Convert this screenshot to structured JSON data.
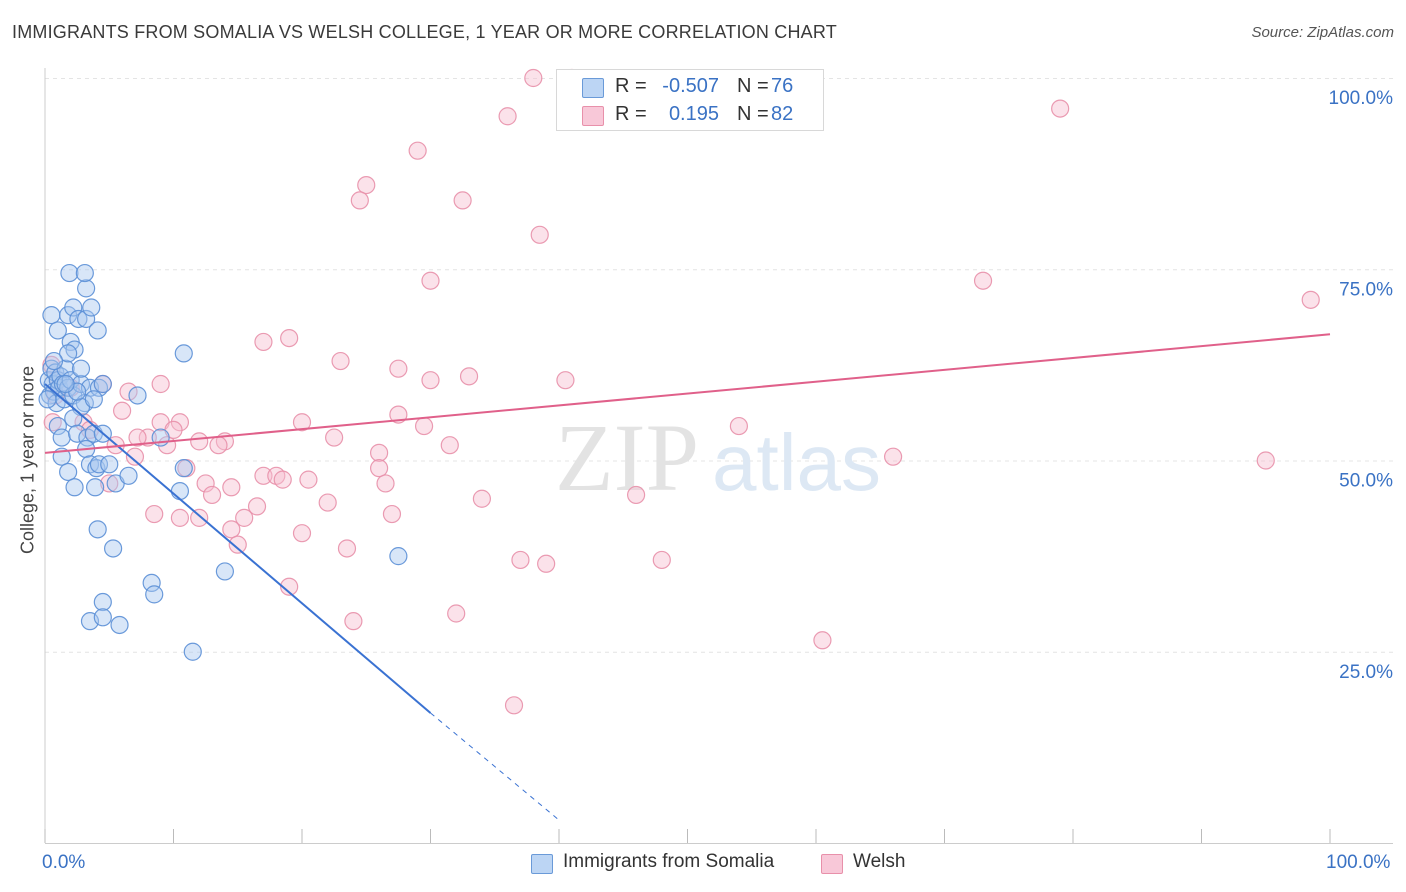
{
  "header": {
    "title": "IMMIGRANTS FROM SOMALIA VS WELSH COLLEGE, 1 YEAR OR MORE CORRELATION CHART",
    "source": "Source: ZipAtlas.com"
  },
  "watermark": {
    "zip": "ZIP",
    "atlas": "atlas"
  },
  "stats": {
    "r_label": "R =",
    "n_label": "N =",
    "somalia": {
      "r": "-0.507",
      "n": "76"
    },
    "welsh": {
      "r": "0.195",
      "n": "82"
    }
  },
  "legend": {
    "somalia": "Immigrants from Somalia",
    "welsh": "Welsh"
  },
  "colors": {
    "somalia_fill": "#a8c8f0",
    "somalia_stroke": "#5b8fd6",
    "somalia_line": "#3a72d2",
    "welsh_fill": "#f6bfd0",
    "welsh_stroke": "#e890aa",
    "welsh_line": "#e0608a",
    "axis_label_blue": "#3a72c4",
    "grid": "#e4e4e4"
  },
  "chart_data": {
    "type": "scatter",
    "title": "IMMIGRANTS FROM SOMALIA VS WELSH COLLEGE, 1 YEAR OR MORE CORRELATION CHART",
    "xlabel": "",
    "ylabel": "College, 1 year or more",
    "xlim": [
      0,
      100
    ],
    "ylim": [
      0,
      100
    ],
    "x_tick_labels": [
      "0.0%",
      "100.0%"
    ],
    "y_tick_labels": [
      "100.0%",
      "75.0%",
      "50.0%",
      "25.0%"
    ],
    "y_ticks": [
      100,
      75,
      50,
      25
    ],
    "legend_position": "bottom",
    "series": [
      {
        "name": "Immigrants from Somalia",
        "r": -0.507,
        "n": 76,
        "trend": {
          "x0": 0,
          "y0": 60.0,
          "x1": 30,
          "y1": 17.0,
          "dash_to_x": 40,
          "dash_to_y": 3.0
        },
        "points": [
          [
            0.3,
            60.5
          ],
          [
            0.4,
            58.5
          ],
          [
            0.5,
            62.0
          ],
          [
            0.6,
            60.0
          ],
          [
            0.7,
            59.0
          ],
          [
            0.8,
            61.5
          ],
          [
            0.9,
            57.5
          ],
          [
            1.0,
            60.5
          ],
          [
            1.1,
            59.5
          ],
          [
            1.2,
            61.0
          ],
          [
            1.4,
            60.0
          ],
          [
            1.5,
            58.0
          ],
          [
            1.6,
            62.0
          ],
          [
            1.8,
            59.5
          ],
          [
            2.0,
            60.5
          ],
          [
            2.2,
            58.5
          ],
          [
            0.5,
            69.0
          ],
          [
            1.0,
            67.0
          ],
          [
            1.8,
            69.0
          ],
          [
            2.2,
            70.0
          ],
          [
            2.6,
            68.5
          ],
          [
            3.2,
            68.5
          ],
          [
            3.6,
            70.0
          ],
          [
            3.2,
            72.5
          ],
          [
            1.9,
            74.5
          ],
          [
            3.1,
            74.5
          ],
          [
            2.0,
            65.5
          ],
          [
            2.3,
            64.5
          ],
          [
            1.8,
            64.0
          ],
          [
            4.1,
            67.0
          ],
          [
            2.8,
            60.0
          ],
          [
            3.5,
            59.5
          ],
          [
            4.2,
            59.5
          ],
          [
            3.1,
            57.5
          ],
          [
            2.8,
            57.0
          ],
          [
            2.5,
            59.0
          ],
          [
            3.8,
            58.0
          ],
          [
            2.2,
            55.5
          ],
          [
            1.0,
            54.5
          ],
          [
            1.3,
            53.0
          ],
          [
            2.5,
            53.5
          ],
          [
            3.3,
            53.0
          ],
          [
            3.8,
            53.5
          ],
          [
            4.5,
            53.5
          ],
          [
            3.2,
            51.5
          ],
          [
            1.3,
            50.5
          ],
          [
            3.5,
            49.5
          ],
          [
            4.0,
            49.0
          ],
          [
            4.2,
            49.5
          ],
          [
            5.0,
            49.5
          ],
          [
            1.8,
            48.5
          ],
          [
            2.3,
            46.5
          ],
          [
            3.9,
            46.5
          ],
          [
            5.5,
            47.0
          ],
          [
            6.5,
            48.0
          ],
          [
            7.2,
            58.5
          ],
          [
            9.0,
            53.0
          ],
          [
            10.5,
            46.0
          ],
          [
            10.8,
            49.0
          ],
          [
            10.8,
            64.0
          ],
          [
            4.1,
            41.0
          ],
          [
            5.3,
            38.5
          ],
          [
            8.3,
            34.0
          ],
          [
            8.5,
            32.5
          ],
          [
            4.5,
            31.5
          ],
          [
            3.5,
            29.0
          ],
          [
            4.5,
            29.5
          ],
          [
            5.8,
            28.5
          ],
          [
            11.5,
            25.0
          ],
          [
            14.0,
            35.5
          ],
          [
            27.5,
            37.5
          ],
          [
            2.8,
            62.0
          ],
          [
            0.7,
            63.0
          ],
          [
            1.6,
            60.0
          ],
          [
            4.5,
            60.0
          ],
          [
            0.2,
            58.0
          ]
        ]
      },
      {
        "name": "Welsh",
        "r": 0.195,
        "n": 82,
        "trend": {
          "x0": 0,
          "y0": 51.0,
          "x1": 100,
          "y1": 66.5
        },
        "points": [
          [
            38.0,
            100.0
          ],
          [
            41.0,
            100.0
          ],
          [
            36.0,
            95.0
          ],
          [
            79.0,
            96.0
          ],
          [
            29.0,
            90.5
          ],
          [
            25.0,
            86.0
          ],
          [
            24.5,
            84.0
          ],
          [
            32.5,
            84.0
          ],
          [
            38.5,
            79.5
          ],
          [
            30.0,
            73.5
          ],
          [
            73.0,
            73.5
          ],
          [
            98.5,
            71.0
          ],
          [
            17.0,
            65.5
          ],
          [
            19.0,
            66.0
          ],
          [
            23.0,
            63.0
          ],
          [
            27.5,
            62.0
          ],
          [
            33.0,
            61.0
          ],
          [
            30.0,
            60.5
          ],
          [
            40.5,
            60.5
          ],
          [
            0.5,
            62.5
          ],
          [
            1.0,
            60.5
          ],
          [
            2.0,
            59.5
          ],
          [
            0.8,
            58.5
          ],
          [
            4.5,
            60.0
          ],
          [
            0.6,
            55.0
          ],
          [
            3.0,
            55.0
          ],
          [
            6.0,
            56.5
          ],
          [
            9.0,
            55.0
          ],
          [
            10.5,
            55.0
          ],
          [
            8.0,
            53.0
          ],
          [
            9.5,
            52.0
          ],
          [
            7.2,
            53.0
          ],
          [
            5.5,
            52.0
          ],
          [
            10.0,
            54.0
          ],
          [
            12.0,
            52.5
          ],
          [
            14.0,
            52.5
          ],
          [
            13.5,
            52.0
          ],
          [
            20.0,
            55.0
          ],
          [
            22.5,
            53.0
          ],
          [
            27.5,
            56.0
          ],
          [
            29.5,
            54.5
          ],
          [
            31.5,
            52.0
          ],
          [
            26.0,
            51.0
          ],
          [
            54.0,
            54.5
          ],
          [
            66.0,
            50.5
          ],
          [
            95.0,
            50.0
          ],
          [
            7.0,
            50.5
          ],
          [
            11.0,
            49.0
          ],
          [
            12.5,
            47.0
          ],
          [
            13.0,
            45.5
          ],
          [
            14.5,
            41.0
          ],
          [
            15.5,
            42.5
          ],
          [
            17.0,
            48.0
          ],
          [
            18.0,
            48.0
          ],
          [
            16.5,
            44.0
          ],
          [
            20.5,
            47.5
          ],
          [
            22.0,
            44.5
          ],
          [
            26.0,
            49.0
          ],
          [
            26.5,
            47.0
          ],
          [
            34.0,
            45.0
          ],
          [
            46.0,
            45.5
          ],
          [
            8.5,
            43.0
          ],
          [
            10.5,
            42.5
          ],
          [
            12.0,
            42.5
          ],
          [
            15.0,
            39.0
          ],
          [
            20.0,
            40.5
          ],
          [
            23.5,
            38.5
          ],
          [
            27.0,
            43.0
          ],
          [
            37.0,
            37.0
          ],
          [
            39.0,
            36.5
          ],
          [
            48.0,
            37.0
          ],
          [
            19.0,
            33.5
          ],
          [
            24.0,
            29.0
          ],
          [
            32.0,
            30.0
          ],
          [
            60.5,
            26.5
          ],
          [
            36.5,
            18.0
          ],
          [
            18.5,
            47.5
          ],
          [
            6.5,
            59.0
          ],
          [
            3.5,
            54.0
          ],
          [
            14.5,
            46.5
          ],
          [
            5.0,
            47.0
          ],
          [
            9.0,
            60.0
          ]
        ]
      }
    ]
  }
}
